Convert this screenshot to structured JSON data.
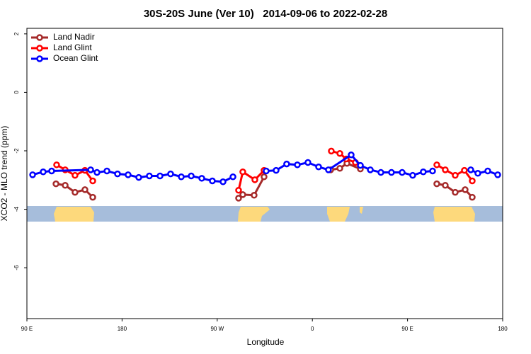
{
  "chart_data": {
    "type": "line",
    "title": "30S-20S June (Ver 10)   2014-09-06 to 2022-02-28",
    "xlabel": "Longitude",
    "ylabel": "XCO2 - MLO trend (ppm)",
    "xlim": [
      90,
      540
    ],
    "ylim": [
      -7.74,
      2.19
    ],
    "xticks": [
      {
        "value": 90,
        "label": "90 E"
      },
      {
        "value": 180,
        "label": "180"
      },
      {
        "value": 270,
        "label": "90 W"
      },
      {
        "value": 360,
        "label": "0"
      },
      {
        "value": 450,
        "label": "90 E"
      },
      {
        "value": 540,
        "label": "180"
      }
    ],
    "yticks": [
      2,
      0,
      -2,
      -4,
      -6
    ],
    "legend": "top-left",
    "series": [
      {
        "name": "Land Nadir",
        "color": "#a52a2a",
        "x": [
          117.5,
          126.2,
          135.5,
          144.9,
          152.3,
          null,
          290.2,
          294.2,
          304.9,
          314.3,
          null,
          377.3,
          386,
          392.7,
          405.4,
          null,
          477.7,
          485.7,
          495.1,
          504.5,
          511.2
        ],
        "values": [
          -3.13,
          -3.18,
          -3.42,
          -3.33,
          -3.59,
          null,
          -3.62,
          -3.5,
          -3.52,
          -2.89,
          null,
          -2.65,
          -2.6,
          -2.43,
          -2.62,
          null,
          -3.13,
          -3.18,
          -3.42,
          -3.33,
          -3.59
        ]
      },
      {
        "name": "Land Glint",
        "color": "#ff0000",
        "x": [
          118.1,
          126.2,
          135.5,
          144.9,
          152.3,
          null,
          290.2,
          294.2,
          305.6,
          314.3,
          null,
          377.9,
          386,
          392,
          400.7,
          null,
          477.7,
          485.7,
          495.1,
          503.8,
          511.2
        ],
        "values": [
          -2.48,
          -2.65,
          -2.84,
          -2.67,
          -3.03,
          null,
          -3.35,
          -2.72,
          -2.99,
          -2.67,
          null,
          -2.01,
          -2.09,
          -2.28,
          -2.4,
          null,
          -2.48,
          -2.65,
          -2.84,
          -2.67,
          -3.03
        ]
      },
      {
        "name": "Ocean Glint",
        "color": "#0000ff",
        "x": [
          95.4,
          105.4,
          113.4,
          150.3,
          156.3,
          165.7,
          175.7,
          185.7,
          195.8,
          205.8,
          215.9,
          225.9,
          236,
          245.4,
          255.4,
          265.4,
          275.5,
          284.9,
          null,
          316.3,
          325.7,
          335.7,
          345.8,
          355.8,
          365.9,
          375.2,
          396.7,
          405.4,
          414.8,
          424.8,
          434.8,
          444.9,
          454.9,
          464.9,
          473.7,
          null,
          509.8,
          516.5,
          525.9,
          535.3
        ],
        "values": [
          -2.82,
          -2.72,
          -2.69,
          -2.65,
          -2.74,
          -2.69,
          -2.79,
          -2.82,
          -2.91,
          -2.86,
          -2.86,
          -2.79,
          -2.89,
          -2.86,
          -2.94,
          -3.03,
          -3.06,
          -2.89,
          null,
          -2.69,
          -2.67,
          -2.45,
          -2.48,
          -2.4,
          -2.55,
          -2.65,
          -2.14,
          -2.5,
          -2.65,
          -2.74,
          -2.74,
          -2.74,
          -2.84,
          -2.72,
          -2.69,
          null,
          -2.65,
          -2.77,
          -2.69,
          -2.82
        ]
      }
    ]
  }
}
